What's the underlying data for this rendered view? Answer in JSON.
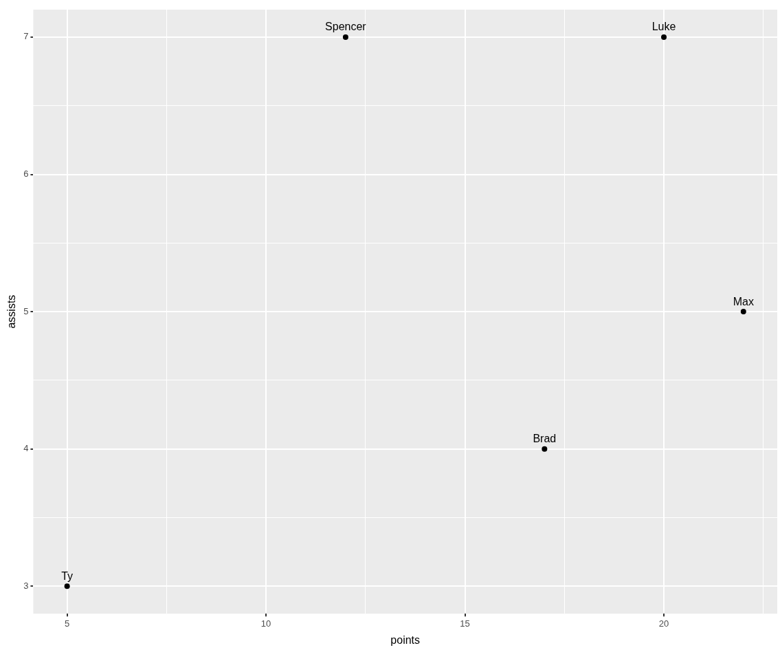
{
  "chart_data": {
    "type": "scatter",
    "xlabel": "points",
    "ylabel": "assists",
    "x": [
      5,
      12,
      17,
      20,
      22
    ],
    "series": [
      {
        "color": "#000000",
        "values": [
          3,
          7,
          4,
          7,
          5
        ]
      }
    ],
    "xlim": [
      4.15,
      22.85
    ],
    "ylim": [
      2.8,
      7.2
    ],
    "xticks": [
      5,
      {
        "value": 7.5,
        "label": null
      },
      10,
      {
        "value": 12.5,
        "label": null
      },
      15,
      {
        "value": 17.5,
        "label": null
      },
      20,
      {
        "value": 22.5,
        "label": null
      }
    ],
    "yticks": [
      3,
      {
        "value": 3.5,
        "label": null
      },
      4,
      {
        "value": 4.5,
        "label": null
      },
      5,
      {
        "value": 5.5,
        "label": null
      },
      6,
      {
        "value": 6.5,
        "label": null
      },
      7
    ],
    "annotations": [
      {
        "text": "Ty",
        "x": 5,
        "y": 3
      },
      {
        "text": "Spencer",
        "x": 12,
        "y": 7
      },
      {
        "text": "Brad",
        "x": 17,
        "y": 4
      },
      {
        "text": "Luke",
        "x": 20,
        "y": 7
      },
      {
        "text": "Max",
        "x": 22,
        "y": 5
      }
    ],
    "grid": true,
    "legend": false,
    "marker": "circle"
  }
}
